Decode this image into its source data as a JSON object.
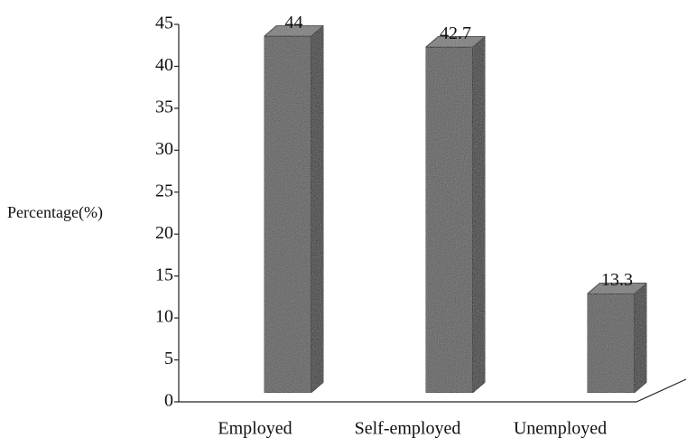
{
  "chart_data": {
    "type": "bar3d",
    "y_label": "Percentage(%)",
    "categories": [
      "Employed",
      "Self-employed",
      "Unemployed"
    ],
    "values": [
      44,
      42.7,
      13.3
    ],
    "color": "#5a5a5a",
    "ylim": [
      0,
      45
    ],
    "yticks": [
      0,
      5,
      10,
      15,
      20,
      25,
      30,
      35,
      40,
      45
    ]
  }
}
